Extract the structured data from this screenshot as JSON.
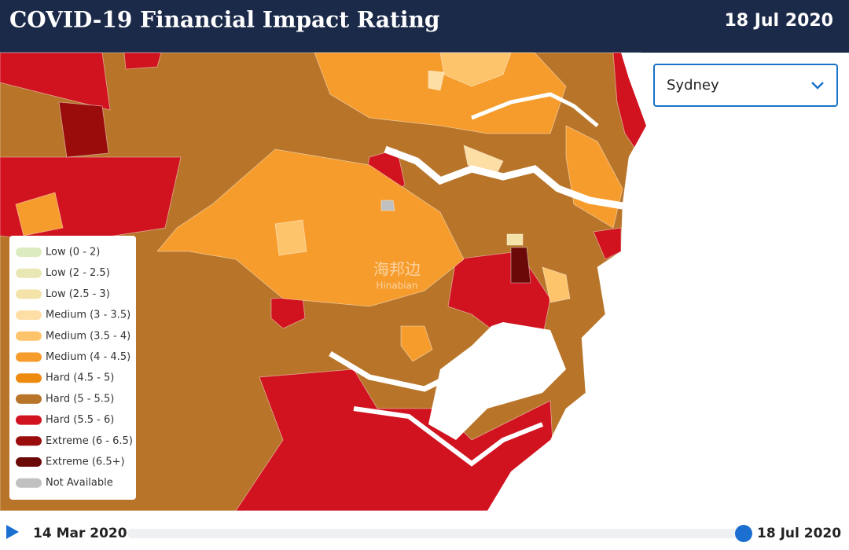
{
  "header": {
    "title": "COVID-19 Financial Impact Rating",
    "date": "18 Jul 2020"
  },
  "region_select": {
    "selected": "Sydney"
  },
  "legend": {
    "items": [
      {
        "label": "Low (0 - 2)",
        "color": "#dcebc0"
      },
      {
        "label": "Low (2 - 2.5)",
        "color": "#e9e7b4"
      },
      {
        "label": "Low (2.5 - 3)",
        "color": "#f3e3a9"
      },
      {
        "label": "Medium (3 - 3.5)",
        "color": "#fddea4"
      },
      {
        "label": "Medium (3.5 - 4)",
        "color": "#fdc46c"
      },
      {
        "label": "Medium (4 - 4.5)",
        "color": "#f69c2c"
      },
      {
        "label": "Hard (4.5 - 5)",
        "color": "#ef8a10"
      },
      {
        "label": "Hard (5 - 5.5)",
        "color": "#b8752a"
      },
      {
        "label": "Hard (5.5 - 6)",
        "color": "#d0131f"
      },
      {
        "label": "Extreme (6 - 6.5)",
        "color": "#9a0b0b"
      },
      {
        "label": "Extreme (6.5+)",
        "color": "#6b0909"
      },
      {
        "label": "Not Available",
        "color": "#c0c0c0"
      }
    ]
  },
  "watermark": {
    "text": "海邦边",
    "subtext": "Hinabian"
  },
  "timeline": {
    "start": "14 Mar 2020",
    "end": "18 Jul 2020"
  }
}
